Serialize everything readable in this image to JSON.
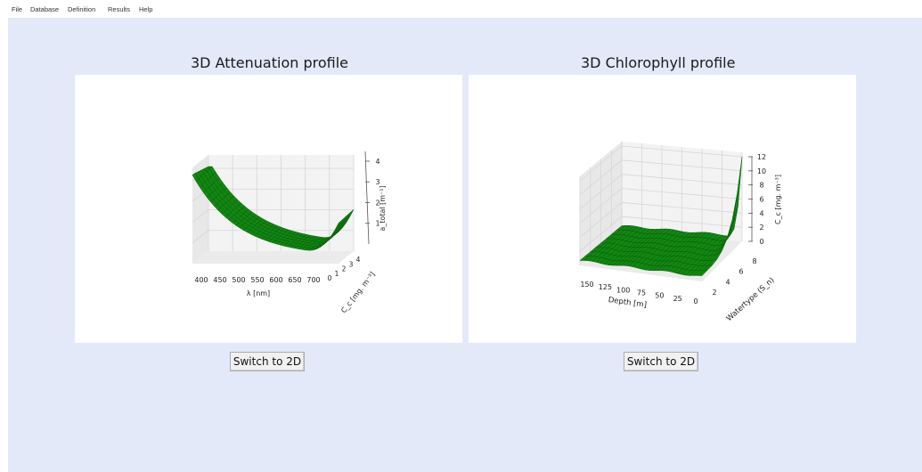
{
  "menu": [
    "File",
    "Database",
    "Definition",
    "Results",
    "Help"
  ],
  "panels": [
    {
      "title": "3D Attenuation profile",
      "button": "Switch to 2D",
      "chart_data": {
        "type": "surface3d",
        "color": "#118811",
        "x_label": "λ [nm]",
        "x_ticks": [
          "400",
          "450",
          "500",
          "550",
          "600",
          "650",
          "700"
        ],
        "y_label": "C_c [mg. m⁻³]",
        "y_ticks": [
          "0",
          "1",
          "2",
          "3",
          "4"
        ],
        "z_label": "a_total [m⁻¹]",
        "z_ticks": [
          "1",
          "2",
          "3",
          "4"
        ],
        "zlim": [
          0,
          4.3
        ]
      }
    },
    {
      "title": "3D Chlorophyll profile",
      "button": "Switch to 2D",
      "chart_data": {
        "type": "surface3d",
        "color": "#118811",
        "x_label": "Depth [m]",
        "x_ticks": [
          "150",
          "125",
          "100",
          "75",
          "50",
          "25",
          "0"
        ],
        "y_label": "Watertype (S_n)",
        "y_ticks": [
          "2",
          "4",
          "6",
          "8"
        ],
        "z_label": "C_c [mg. m⁻³]",
        "z_ticks": [
          "0",
          "2",
          "4",
          "6",
          "8",
          "10",
          "12"
        ],
        "zlim": [
          0,
          12
        ]
      }
    }
  ]
}
